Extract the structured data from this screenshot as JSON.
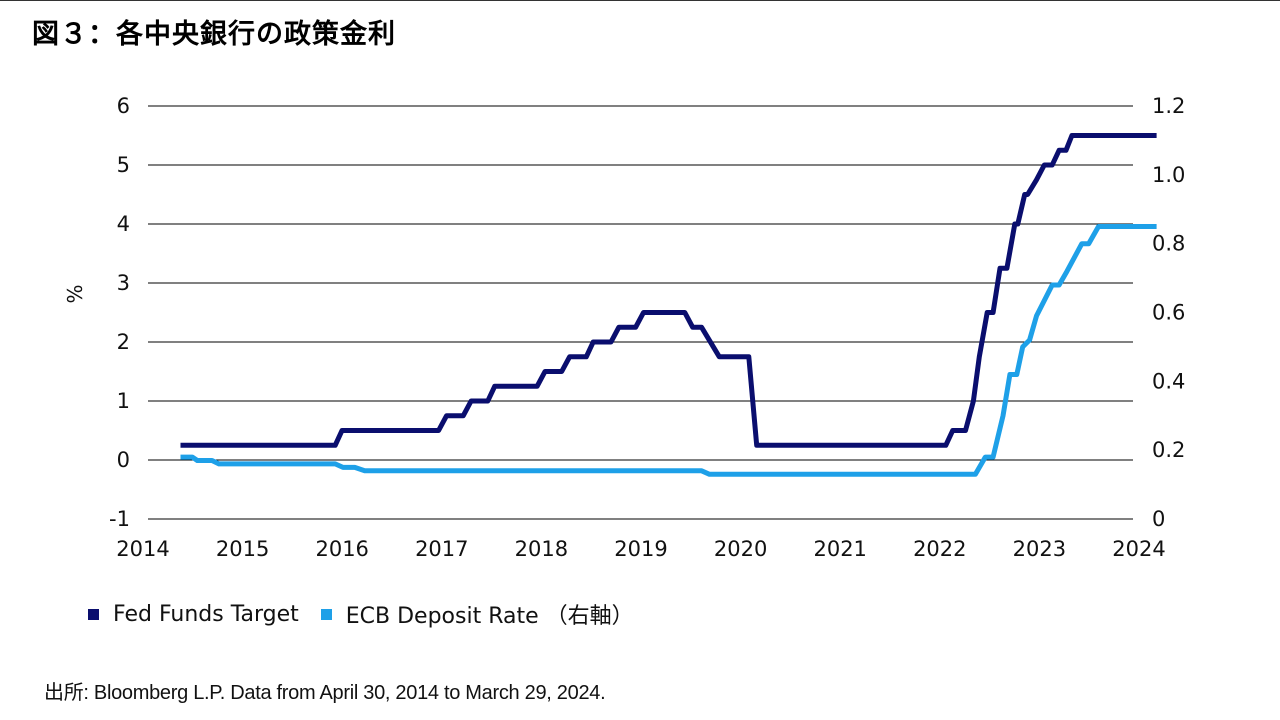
{
  "page": {
    "title": "図３：各中央銀行の政策金利",
    "source": "出所: Bloomberg L.P. Data from April 30, 2014 to March 29, 2024."
  },
  "chart_data": {
    "type": "line",
    "title": "図３：各中央銀行の政策金利",
    "ylabel": "%",
    "y2label": "",
    "ylim": [
      -1,
      6
    ],
    "y2lim": [
      0,
      1.2
    ],
    "xlim": [
      2014,
      2024
    ],
    "grid": true,
    "legend_position": "bottom-left",
    "x_ticks": [
      "2014",
      "2015",
      "2016",
      "2017",
      "2018",
      "2019",
      "2020",
      "2021",
      "2022",
      "2023",
      "2024"
    ],
    "y_ticks": [
      "-1",
      "0",
      "1",
      "2",
      "3",
      "4",
      "5",
      "6"
    ],
    "y2_ticks": [
      "0",
      "0.2",
      "0.4",
      "0.6",
      "0.8",
      "1.0",
      "1.2"
    ],
    "colors": {
      "fed": "#0a0e6e",
      "ecb": "#1ea0e8"
    },
    "series": [
      {
        "name": "Fed Funds Target",
        "axis": "left",
        "x": [
          2014.33,
          2015.9,
          2015.97,
          2016.95,
          2017.03,
          2017.2,
          2017.28,
          2017.45,
          2017.52,
          2017.95,
          2018.03,
          2018.2,
          2018.28,
          2018.45,
          2018.52,
          2018.7,
          2018.78,
          2018.95,
          2019.03,
          2019.45,
          2019.53,
          2019.62,
          2019.8,
          2020.1,
          2020.18,
          2022.1,
          2022.17,
          2022.3,
          2022.38,
          2022.44,
          2022.52,
          2022.58,
          2022.65,
          2022.72,
          2022.8,
          2022.83,
          2022.9,
          2022.93,
          2023.02,
          2023.1,
          2023.18,
          2023.25,
          2023.32,
          2023.38,
          2023.47,
          2023.53,
          2024.24
        ],
        "values": [
          0.25,
          0.25,
          0.5,
          0.5,
          0.75,
          0.75,
          1.0,
          1.0,
          1.25,
          1.25,
          1.5,
          1.5,
          1.75,
          1.75,
          2.0,
          2.0,
          2.25,
          2.25,
          2.5,
          2.5,
          2.25,
          2.25,
          1.75,
          1.75,
          0.25,
          0.25,
          0.5,
          0.5,
          1.0,
          1.75,
          2.5,
          2.5,
          3.25,
          3.25,
          4.0,
          4.0,
          4.5,
          4.5,
          4.75,
          5.0,
          5.0,
          5.25,
          5.25,
          5.5,
          5.5,
          5.5,
          5.5
        ]
      },
      {
        "name": "ECB Deposit Rate （右軸）",
        "axis": "right",
        "x": [
          2014.33,
          2014.45,
          2014.5,
          2014.65,
          2014.72,
          2015.9,
          2015.98,
          2016.1,
          2016.2,
          2019.62,
          2019.7,
          2022.4,
          2022.5,
          2022.58,
          2022.68,
          2022.75,
          2022.82,
          2022.88,
          2022.95,
          2023.02,
          2023.18,
          2023.25,
          2023.33,
          2023.48,
          2023.55,
          2023.65,
          2024.24
        ],
        "values": [
          0.18,
          0.18,
          0.17,
          0.17,
          0.16,
          0.16,
          0.15,
          0.15,
          0.14,
          0.14,
          0.13,
          0.13,
          0.18,
          0.18,
          0.3,
          0.42,
          0.42,
          0.5,
          0.52,
          0.59,
          0.68,
          0.68,
          0.72,
          0.8,
          0.8,
          0.85,
          0.85
        ]
      }
    ]
  }
}
